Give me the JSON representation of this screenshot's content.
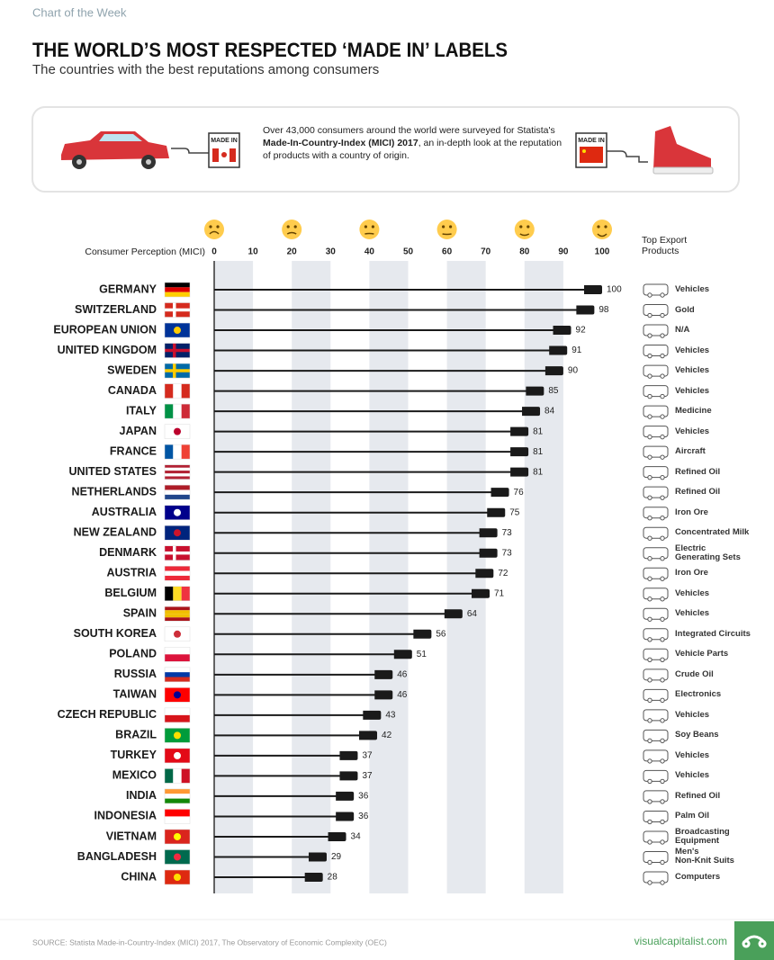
{
  "header": "Chart of the Week",
  "intro": {
    "text": [
      "Over 43,000 consumers around the world were surveyed for Statista's ",
      "Made-In-Country-Index (MICI) 2017",
      ", an in-depth look at the reputation of products with a country of origin."
    ],
    "badges": [
      "MADE IN",
      "MADE IN"
    ]
  },
  "chart_data": {
    "type": "lollipop",
    "title": "THE WORLD’S MOST RESPECTED ‘MADE IN’ LABELS",
    "subtitle": "The countries with the best reputations among consumers",
    "x_label": "Consumer Perception (MICI)",
    "products_label": "Top Export Products",
    "categories": [
      "GERMANY",
      "SWITZERLAND",
      "EUROPEAN UNION",
      "UNITED KINGDOM",
      "SWEDEN",
      "CANADA",
      "ITALY",
      "JAPAN",
      "FRANCE",
      "UNITED STATES",
      "NETHERLANDS",
      "AUSTRALIA",
      "NEW ZEALAND",
      "DENMARK",
      "AUSTRIA",
      "BELGIUM",
      "SPAIN",
      "SOUTH KOREA",
      "POLAND",
      "RUSSIA",
      "TAIWAN",
      "CZECH REPUBLIC",
      "BRAZIL",
      "TURKEY",
      "MEXICO",
      "INDIA",
      "INDONESIA",
      "VIETNAM",
      "BANGLADESH",
      "CHINA"
    ],
    "values": [
      100,
      98,
      92,
      91,
      90,
      85,
      84,
      81,
      81,
      81,
      76,
      75,
      73,
      73,
      72,
      71,
      64,
      56,
      51,
      46,
      46,
      43,
      42,
      37,
      37,
      36,
      36,
      34,
      29,
      28
    ],
    "products": [
      "Vehicles",
      "Gold",
      "N/A",
      "Vehicles",
      "Vehicles",
      "Vehicles",
      "Medicine",
      "Vehicles",
      "Aircraft",
      "Refined Oil",
      "Refined Oil",
      "Iron Ore",
      "Concentrated Milk",
      "Electric\nGenerating Sets",
      "Iron Ore",
      "Vehicles",
      "Vehicles",
      "Integrated Circuits",
      "Vehicle Parts",
      "Crude Oil",
      "Electronics",
      "Vehicles",
      "Soy Beans",
      "Vehicles",
      "Vehicles",
      "Refined Oil",
      "Palm Oil",
      "Broadcasting\nEquipment",
      "Men's\nNon-Knit Suits",
      "Computers"
    ],
    "color": "#1a1a1a",
    "xlim": [
      0,
      100
    ],
    "xticks": [
      0,
      10,
      20,
      30,
      40,
      50,
      60,
      70,
      80,
      90,
      100
    ],
    "source": "SOURCE: Statista Made-in-Country-Index (MICI) 2017, The Observatory of Economic Complexity (OEC)",
    "brand": "visualcapitalist.com"
  }
}
